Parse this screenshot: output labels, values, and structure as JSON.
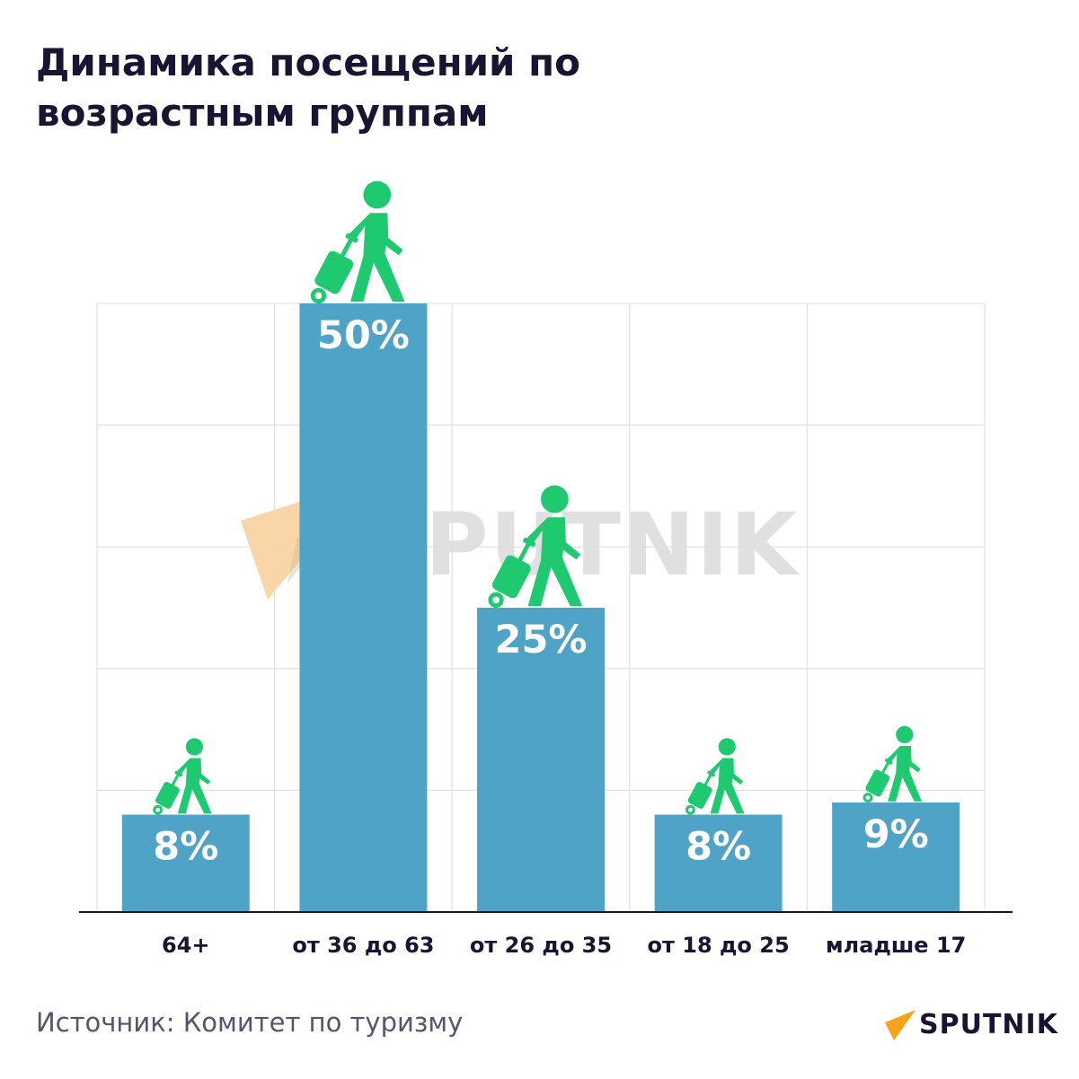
{
  "title_lines": [
    "Динамика посещений по",
    "возрастным группам"
  ],
  "source": "Источник: Комитет по туризму",
  "logo": {
    "text": "SPUTNIK",
    "watermark": "SPUTNIK"
  },
  "colors": {
    "bar": "#4fa3c7",
    "traveler": "#1ec96f",
    "grid": "#dcdcdc",
    "axis": "#1a1433",
    "title": "#1a1433",
    "logo_accent": "#f7a21b"
  },
  "icon": "traveler-with-suitcase-icon",
  "chart_data": {
    "type": "bar",
    "title": "Динамика посещений по возрастным группам",
    "categories": [
      "64+",
      "от 36 до 63",
      "от 26 до 35",
      "от 18 до 25",
      "младше 17"
    ],
    "values": [
      8,
      50,
      25,
      8,
      9
    ],
    "value_labels": [
      "8%",
      "50%",
      "25%",
      "8%",
      "9%"
    ],
    "unit": "%",
    "ylim": [
      0,
      50
    ],
    "grid": true,
    "legend": "none"
  }
}
